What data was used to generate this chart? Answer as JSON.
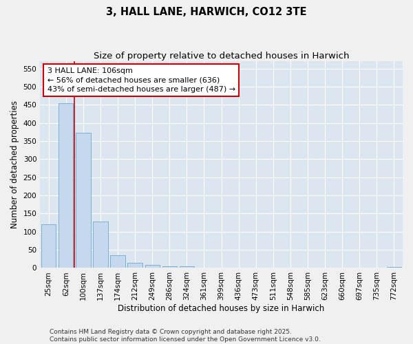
{
  "title1": "3, HALL LANE, HARWICH, CO12 3TE",
  "title2": "Size of property relative to detached houses in Harwich",
  "xlabel": "Distribution of detached houses by size in Harwich",
  "ylabel": "Number of detached properties",
  "categories": [
    "25sqm",
    "62sqm",
    "100sqm",
    "137sqm",
    "174sqm",
    "212sqm",
    "249sqm",
    "286sqm",
    "324sqm",
    "361sqm",
    "399sqm",
    "436sqm",
    "473sqm",
    "511sqm",
    "548sqm",
    "585sqm",
    "623sqm",
    "660sqm",
    "697sqm",
    "735sqm",
    "772sqm"
  ],
  "values": [
    120,
    455,
    373,
    128,
    35,
    15,
    8,
    5,
    4,
    0,
    0,
    0,
    0,
    0,
    0,
    0,
    0,
    0,
    0,
    0,
    2
  ],
  "bar_color": "#c5d8ed",
  "bar_edge_color": "#6fa8d0",
  "vline_color": "#cc0000",
  "annotation_text": "3 HALL LANE: 106sqm\n← 56% of detached houses are smaller (636)\n43% of semi-detached houses are larger (487) →",
  "annotation_box_color": "#ffffff",
  "annotation_box_edge": "#cc0000",
  "ylim": [
    0,
    570
  ],
  "yticks": [
    0,
    50,
    100,
    150,
    200,
    250,
    300,
    350,
    400,
    450,
    500,
    550
  ],
  "plot_bg_color": "#dce6f0",
  "grid_color": "#ffffff",
  "fig_bg_color": "#f0f0f0",
  "footer": "Contains HM Land Registry data © Crown copyright and database right 2025.\nContains public sector information licensed under the Open Government Licence v3.0.",
  "title_fontsize": 10.5,
  "subtitle_fontsize": 9.5,
  "axis_label_fontsize": 8.5,
  "tick_fontsize": 7.5,
  "annotation_fontsize": 8,
  "footer_fontsize": 6.5
}
